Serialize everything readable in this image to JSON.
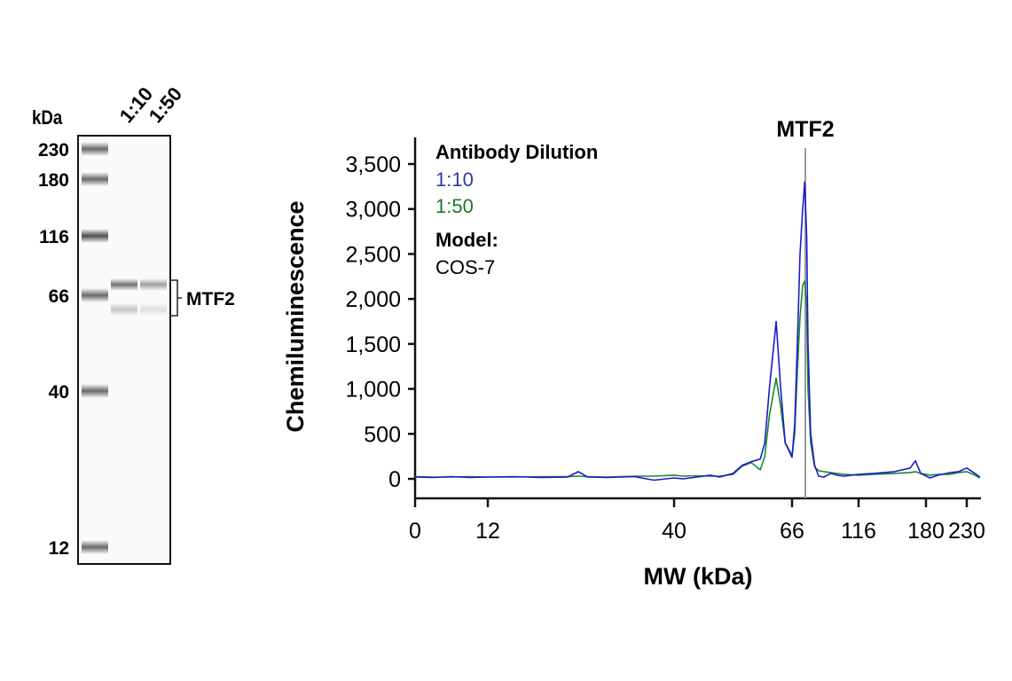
{
  "gel": {
    "unit_label": "kDa",
    "lane_labels": [
      "1:10",
      "1:50"
    ],
    "ladder": [
      "230",
      "180",
      "116",
      "66",
      "40",
      "12"
    ],
    "target_label": "MTF2",
    "bands": [
      {
        "lane": "1:10",
        "kDa_label": "upper",
        "intensity": 0.75
      },
      {
        "lane": "1:10",
        "kDa_label": "lower",
        "intensity": 0.3
      },
      {
        "lane": "1:50",
        "kDa_label": "upper",
        "intensity": 0.5
      },
      {
        "lane": "1:50",
        "kDa_label": "lower",
        "intensity": 0.15
      }
    ]
  },
  "chart_data": {
    "type": "line",
    "title": "",
    "annotation": "MTF2",
    "annotation_x": 76,
    "xlabel": "MW (kDa)",
    "ylabel": "Chemiluminescence",
    "xticks": [
      0,
      12,
      40,
      66,
      116,
      180,
      230
    ],
    "xtick_labels": [
      "0",
      "12",
      "40",
      "66",
      "116",
      "180",
      "230"
    ],
    "yticks": [
      0,
      500,
      1000,
      1500,
      2000,
      2500,
      3000,
      3500
    ],
    "ytick_labels": [
      "0",
      "500",
      "1,000",
      "1,500",
      "2,000",
      "2,500",
      "3,000",
      "3,500"
    ],
    "ylim": [
      0,
      3500
    ],
    "x_scale": "non-linear (MW ladder)",
    "grid": false,
    "legend": {
      "title": "Antibody Dilution",
      "entries": [
        "1:10",
        "1:50"
      ],
      "model_title": "Model:",
      "model_value": "COS-7",
      "placement": "top-left"
    },
    "series": [
      {
        "name": "1:10",
        "color": "#1a1ad0",
        "points": [
          [
            0,
            20
          ],
          [
            3,
            15
          ],
          [
            6,
            25
          ],
          [
            9,
            15
          ],
          [
            12,
            20
          ],
          [
            16,
            25
          ],
          [
            20,
            15
          ],
          [
            24,
            20
          ],
          [
            25.6,
            80
          ],
          [
            27,
            20
          ],
          [
            30,
            15
          ],
          [
            34,
            25
          ],
          [
            37,
            -15
          ],
          [
            40,
            10
          ],
          [
            42,
            0
          ],
          [
            45,
            20
          ],
          [
            48,
            40
          ],
          [
            50,
            20
          ],
          [
            53,
            60
          ],
          [
            55,
            150
          ],
          [
            57,
            190
          ],
          [
            59,
            220
          ],
          [
            60,
            400
          ],
          [
            61,
            1000
          ],
          [
            62.5,
            1750
          ],
          [
            63.5,
            1000
          ],
          [
            64.5,
            400
          ],
          [
            66,
            240
          ],
          [
            68,
            600
          ],
          [
            70,
            1500
          ],
          [
            72,
            2500
          ],
          [
            74,
            3000
          ],
          [
            75.5,
            3300
          ],
          [
            77,
            2700
          ],
          [
            78,
            1500
          ],
          [
            80,
            500
          ],
          [
            83,
            150
          ],
          [
            86,
            30
          ],
          [
            90,
            20
          ],
          [
            95,
            60
          ],
          [
            100,
            40
          ],
          [
            105,
            30
          ],
          [
            116,
            50
          ],
          [
            130,
            60
          ],
          [
            150,
            80
          ],
          [
            165,
            120
          ],
          [
            170,
            200
          ],
          [
            175,
            60
          ],
          [
            185,
            10
          ],
          [
            195,
            40
          ],
          [
            210,
            70
          ],
          [
            220,
            80
          ],
          [
            230,
            120
          ],
          [
            240,
            60
          ],
          [
            246,
            20
          ]
        ]
      },
      {
        "name": "1:50",
        "color": "#1a8a2a",
        "points": [
          [
            0,
            25
          ],
          [
            3,
            20
          ],
          [
            6,
            20
          ],
          [
            9,
            25
          ],
          [
            12,
            20
          ],
          [
            16,
            20
          ],
          [
            20,
            25
          ],
          [
            24,
            25
          ],
          [
            25.6,
            30
          ],
          [
            27,
            25
          ],
          [
            30,
            20
          ],
          [
            34,
            30
          ],
          [
            37,
            30
          ],
          [
            40,
            40
          ],
          [
            42,
            30
          ],
          [
            45,
            35
          ],
          [
            48,
            30
          ],
          [
            50,
            30
          ],
          [
            53,
            50
          ],
          [
            55,
            140
          ],
          [
            57,
            180
          ],
          [
            59,
            100
          ],
          [
            60,
            250
          ],
          [
            61,
            700
          ],
          [
            62.5,
            1120
          ],
          [
            63.5,
            800
          ],
          [
            64.5,
            400
          ],
          [
            66,
            260
          ],
          [
            68,
            500
          ],
          [
            70,
            1200
          ],
          [
            72,
            1800
          ],
          [
            74,
            2150
          ],
          [
            75.5,
            2200
          ],
          [
            77,
            1900
          ],
          [
            78,
            1000
          ],
          [
            80,
            400
          ],
          [
            83,
            130
          ],
          [
            86,
            90
          ],
          [
            90,
            80
          ],
          [
            95,
            70
          ],
          [
            100,
            60
          ],
          [
            105,
            50
          ],
          [
            116,
            40
          ],
          [
            130,
            50
          ],
          [
            150,
            60
          ],
          [
            165,
            70
          ],
          [
            170,
            80
          ],
          [
            175,
            60
          ],
          [
            185,
            40
          ],
          [
            195,
            50
          ],
          [
            210,
            50
          ],
          [
            220,
            70
          ],
          [
            230,
            80
          ],
          [
            240,
            40
          ],
          [
            246,
            10
          ]
        ]
      }
    ]
  }
}
